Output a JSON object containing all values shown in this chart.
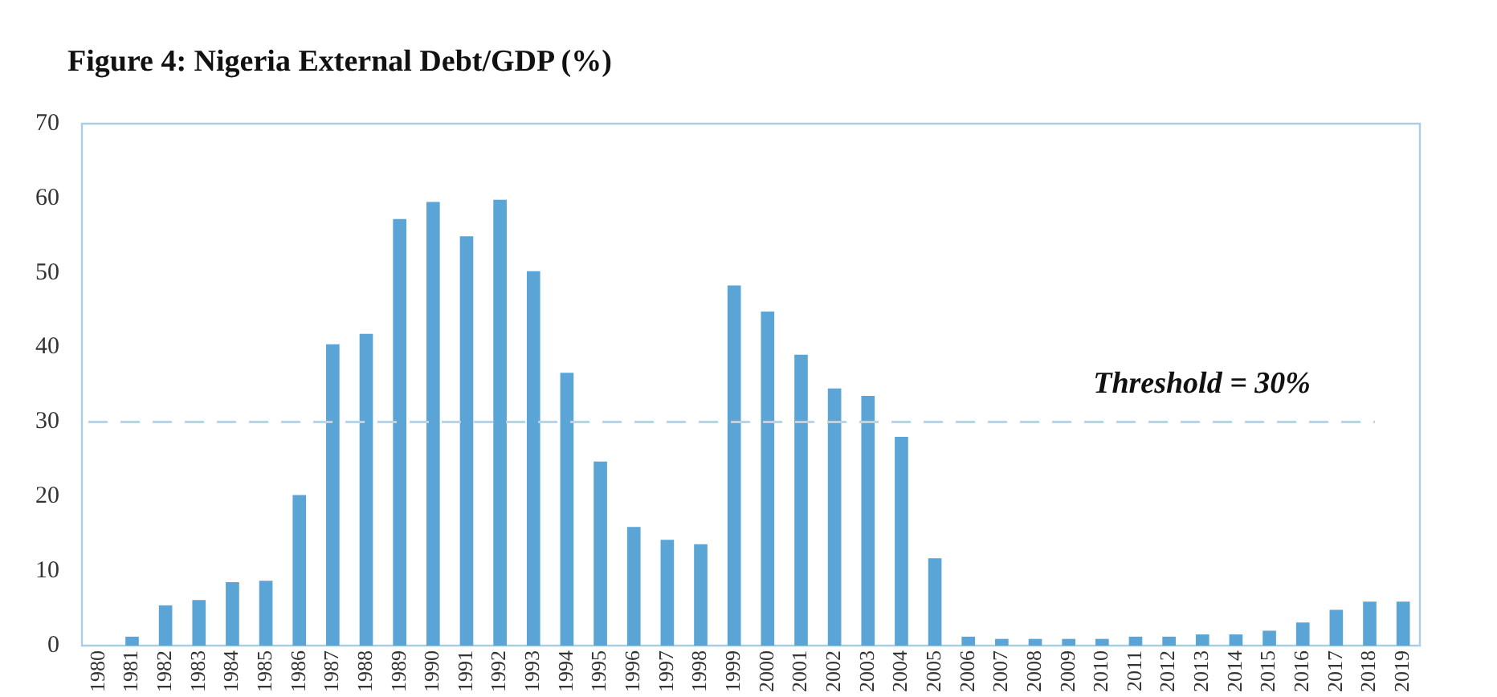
{
  "chart_data": {
    "type": "bar",
    "title": "Figure 4: Nigeria External Debt/GDP (%)",
    "categories": [
      "1980",
      "1981",
      "1982",
      "1983",
      "1984",
      "1985",
      "1986",
      "1987",
      "1988",
      "1989",
      "1990",
      "1991",
      "1992",
      "1993",
      "1994",
      "1995",
      "1996",
      "1997",
      "1998",
      "1999",
      "2000",
      "2001",
      "2002",
      "2003",
      "2004",
      "2005",
      "2006",
      "2007",
      "2008",
      "2009",
      "2010",
      "2011",
      "2012",
      "2013",
      "2014",
      "2015",
      "2016",
      "2017",
      "2018",
      "2019"
    ],
    "values": [
      0,
      1.2,
      5.4,
      6.1,
      8.5,
      8.7,
      20.2,
      40.4,
      41.8,
      57.2,
      59.5,
      54.9,
      59.8,
      50.2,
      36.6,
      24.7,
      15.9,
      14.2,
      13.6,
      48.3,
      44.8,
      39.0,
      34.5,
      33.5,
      28.0,
      11.7,
      1.2,
      0.9,
      0.9,
      0.9,
      0.9,
      1.2,
      1.2,
      1.5,
      1.5,
      2.0,
      3.1,
      4.8,
      5.9,
      5.9
    ],
    "color": "#5aa5d6",
    "ylim": [
      0,
      70
    ],
    "yticks": [
      0,
      10,
      20,
      30,
      40,
      50,
      60,
      70
    ],
    "grid": false,
    "legend": false,
    "ref_lines": [
      {
        "axis": "y",
        "value": 30,
        "label": "Threshold = 30%",
        "color": "#bcd3e3",
        "line_style": "dashed"
      }
    ]
  }
}
